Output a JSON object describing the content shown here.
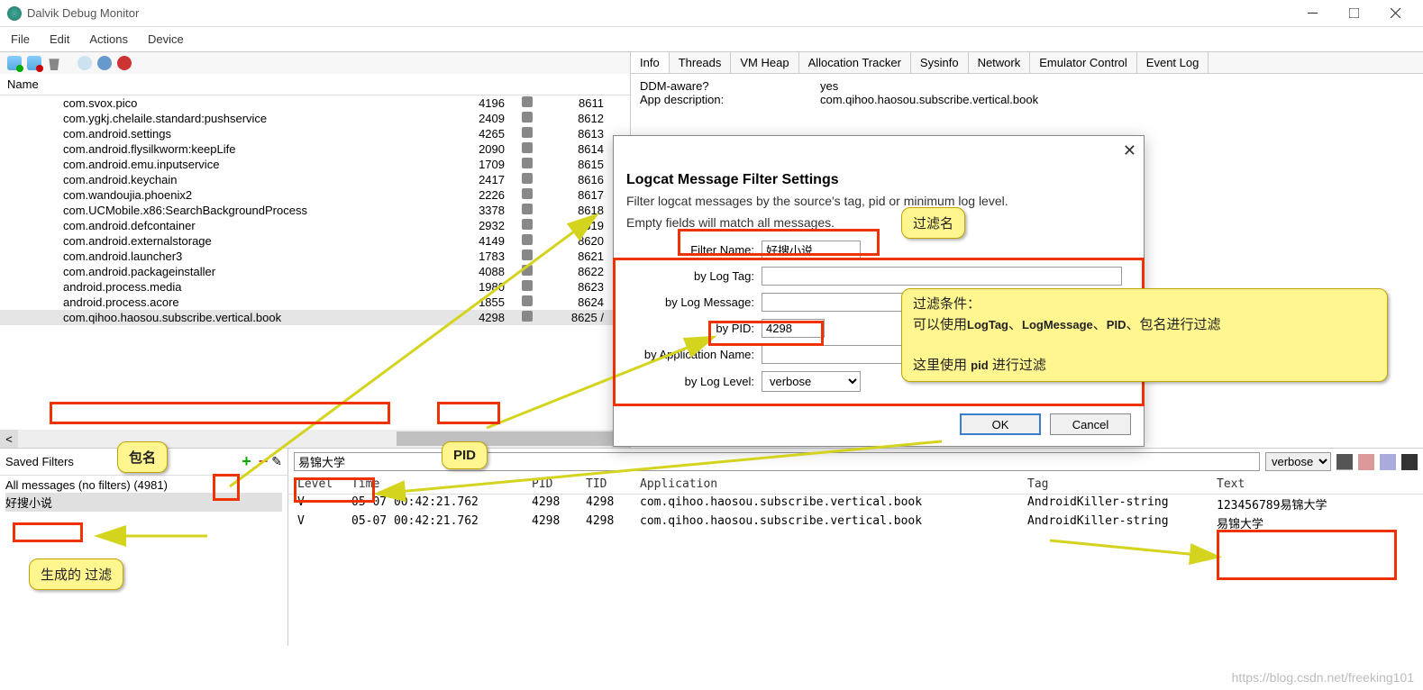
{
  "window": {
    "title": "Dalvik Debug Monitor"
  },
  "menu": [
    "File",
    "Edit",
    "Actions",
    "Device"
  ],
  "processes": {
    "header": "Name",
    "rows": [
      {
        "name": "com.svox.pico",
        "pid": "4196",
        "last": "8611"
      },
      {
        "name": "com.ygkj.chelaile.standard:pushservice",
        "pid": "2409",
        "last": "8612"
      },
      {
        "name": "com.android.settings",
        "pid": "4265",
        "last": "8613"
      },
      {
        "name": "com.android.flysilkworm:keepLife",
        "pid": "2090",
        "last": "8614"
      },
      {
        "name": "com.android.emu.inputservice",
        "pid": "1709",
        "last": "8615"
      },
      {
        "name": "com.android.keychain",
        "pid": "2417",
        "last": "8616"
      },
      {
        "name": "com.wandoujia.phoenix2",
        "pid": "2226",
        "last": "8617"
      },
      {
        "name": "com.UCMobile.x86:SearchBackgroundProcess",
        "pid": "3378",
        "last": "8618"
      },
      {
        "name": "com.android.defcontainer",
        "pid": "2932",
        "last": "8619"
      },
      {
        "name": "com.android.externalstorage",
        "pid": "4149",
        "last": "8620"
      },
      {
        "name": "com.android.launcher3",
        "pid": "1783",
        "last": "8621"
      },
      {
        "name": "com.android.packageinstaller",
        "pid": "4088",
        "last": "8622"
      },
      {
        "name": "android.process.media",
        "pid": "1980",
        "last": "8623"
      },
      {
        "name": "android.process.acore",
        "pid": "1855",
        "last": "8624"
      },
      {
        "name": "com.qihoo.haosou.subscribe.vertical.book",
        "pid": "4298",
        "last": "8625 /",
        "selected": true
      }
    ]
  },
  "rightTabs": [
    "Info",
    "Threads",
    "VM Heap",
    "Allocation Tracker",
    "Sysinfo",
    "Network",
    "Emulator Control",
    "Event Log"
  ],
  "info": {
    "ddm_label": "DDM-aware?",
    "ddm_value": "yes",
    "appdesc_label": "App description:",
    "appdesc_value": "com.qihoo.haosou.subscribe.vertical.book"
  },
  "dialog": {
    "title": "Logcat Message Filter Settings",
    "desc1": "Filter logcat messages by the source's tag, pid or minimum log level.",
    "desc2": "Empty fields will match all messages.",
    "labels": {
      "filterName": "Filter Name:",
      "logTag": "by Log Tag:",
      "logMessage": "by Log Message:",
      "pid": "by PID:",
      "appName": "by Application Name:",
      "logLevel": "by Log Level:"
    },
    "values": {
      "filterName": "好搜小说",
      "pid": "4298",
      "logLevel": "verbose"
    },
    "ok": "OK",
    "cancel": "Cancel"
  },
  "filters": {
    "title": "Saved Filters",
    "allMessages": "All messages (no filters) (4981)",
    "item": "好搜小说"
  },
  "logSearch": {
    "value": "易锦大学",
    "level": "verbose"
  },
  "logColumns": {
    "level": "Level",
    "time": "Time",
    "pid": "PID",
    "tid": "TID",
    "app": "Application",
    "tag": "Tag",
    "text": "Text"
  },
  "logRows": [
    {
      "level": "V",
      "time": "05-07 00:42:21.762",
      "pid": "4298",
      "tid": "4298",
      "app": "com.qihoo.haosou.subscribe.vertical.book",
      "tag": "AndroidKiller-string",
      "text": "123456789易锦大学"
    },
    {
      "level": "V",
      "time": "05-07 00:42:21.762",
      "pid": "4298",
      "tid": "4298",
      "app": "com.qihoo.haosou.subscribe.vertical.book",
      "tag": "AndroidKiller-string",
      "text": "易锦大学"
    }
  ],
  "annotations": {
    "filterNameLabel": "过滤名",
    "conditions": "过滤条件：<br>可以使用<b>LogTag</b>、<b>LogMessage</b>、<b>PID</b>、包名进行过滤<br><br>这里使用 <b>pid</b> 进行过滤",
    "pkgName": "包名",
    "pidLabel": "PID",
    "generated": "生成的 过滤"
  },
  "colors": {
    "annoBorder": "#e30",
    "callout": "#fff68f",
    "arrow": "#d4d41f"
  },
  "watermark": "https://blog.csdn.net/freeking101"
}
